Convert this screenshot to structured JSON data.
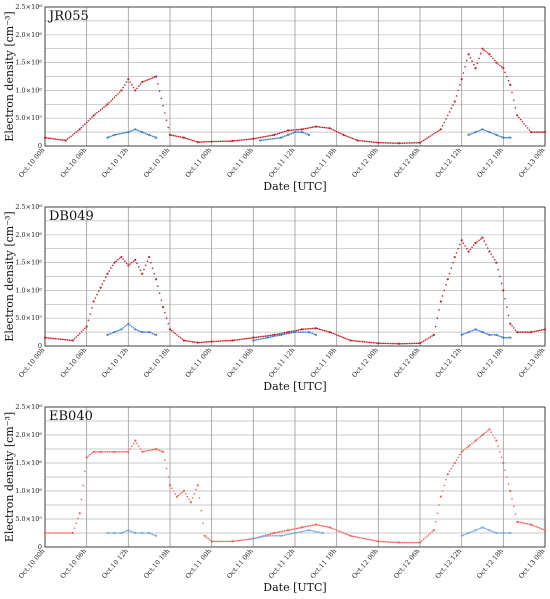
{
  "chart_data": [
    {
      "type": "scatter",
      "title": "JR055",
      "xlabel": "Date [UTC]",
      "ylabel": "Electron density [cm⁻³]",
      "ylim": [
        0,
        2500000
      ],
      "xlim": [
        0,
        72
      ],
      "x_tick_labels": [
        "Oct.10 00h",
        "Oct.10 06h",
        "Oct.10 12h",
        "Oct.10 18h",
        "Oct.11 00h",
        "Oct.11 06h",
        "Oct.11 12h",
        "Oct.11 18h",
        "Oct.12 00h",
        "Oct.12 06h",
        "Oct.12 12h",
        "Oct.12 18h",
        "Oct.13 00h"
      ],
      "y_tick_labels": [
        "0",
        "5.0×10⁵",
        "1.0×10⁶",
        "1.5×10⁶",
        "2.0×10⁶",
        "2.5×10⁶"
      ],
      "grid": true,
      "series": [
        {
          "color": "#c0202a",
          "x": [
            0,
            3,
            5,
            7,
            9,
            11,
            12,
            13,
            14,
            16,
            18,
            20,
            22,
            24,
            27,
            30,
            33,
            35,
            37,
            39,
            41,
            43,
            45,
            48,
            51,
            54,
            57,
            59,
            60,
            61,
            62,
            63,
            64,
            65,
            66,
            67,
            68,
            70,
            72
          ],
          "y": [
            150000,
            100000,
            300000,
            550000,
            750000,
            1000000,
            1200000,
            1000000,
            1150000,
            1250000,
            200000,
            150000,
            70000,
            80000,
            90000,
            130000,
            200000,
            280000,
            300000,
            350000,
            320000,
            200000,
            100000,
            60000,
            50000,
            60000,
            300000,
            800000,
            1200000,
            1650000,
            1400000,
            1750000,
            1650000,
            1500000,
            1400000,
            1100000,
            550000,
            250000,
            250000
          ]
        },
        {
          "color": "#3a7fc8",
          "x": [
            9,
            10,
            12,
            13,
            14,
            15,
            16,
            31,
            34,
            35,
            36,
            37,
            38,
            61,
            62,
            63,
            64,
            65,
            66,
            67
          ],
          "y": [
            150000,
            200000,
            250000,
            300000,
            250000,
            200000,
            150000,
            100000,
            150000,
            200000,
            250000,
            250000,
            200000,
            200000,
            250000,
            300000,
            250000,
            200000,
            150000,
            150000
          ]
        }
      ]
    },
    {
      "type": "scatter",
      "title": "DB049",
      "xlabel": "Date [UTC]",
      "ylabel": "Electron density [cm⁻³]",
      "ylim": [
        0,
        2500000
      ],
      "xlim": [
        0,
        72
      ],
      "x_tick_labels": [
        "Oct.10 00h",
        "Oct.10 06h",
        "Oct.10 12h",
        "Oct.10 18h",
        "Oct.11 00h",
        "Oct.11 06h",
        "Oct.11 12h",
        "Oct.11 18h",
        "Oct.12 00h",
        "Oct.12 06h",
        "Oct.12 12h",
        "Oct.12 18h",
        "Oct.13 00h"
      ],
      "y_tick_labels": [
        "0",
        "5.0×10⁵",
        "1.0×10⁶",
        "1.5×10⁶",
        "2.0×10⁶",
        "2.5×10⁶"
      ],
      "grid": true,
      "series": [
        {
          "color": "#c0202a",
          "x": [
            0,
            4,
            6,
            7,
            8,
            9,
            10,
            11,
            12,
            13,
            14,
            15,
            16,
            17,
            18,
            20,
            22,
            24,
            27,
            30,
            33,
            35,
            37,
            39,
            41,
            44,
            48,
            51,
            54,
            56,
            57,
            58,
            59,
            60,
            61,
            62,
            63,
            64,
            65,
            66,
            67,
            68,
            70,
            72
          ],
          "y": [
            150000,
            100000,
            350000,
            800000,
            1050000,
            1300000,
            1500000,
            1600000,
            1450000,
            1550000,
            1300000,
            1600000,
            1200000,
            700000,
            300000,
            100000,
            60000,
            80000,
            100000,
            150000,
            200000,
            250000,
            300000,
            320000,
            250000,
            100000,
            50000,
            40000,
            50000,
            200000,
            800000,
            1200000,
            1600000,
            1900000,
            1700000,
            1850000,
            1950000,
            1700000,
            1500000,
            1000000,
            400000,
            250000,
            250000,
            300000
          ]
        },
        {
          "color": "#3a7fc8",
          "x": [
            9,
            10,
            11,
            12,
            13,
            14,
            15,
            16,
            30,
            32,
            34,
            36,
            38,
            39,
            60,
            61,
            62,
            63,
            64,
            65,
            66,
            67
          ],
          "y": [
            200000,
            250000,
            300000,
            400000,
            300000,
            250000,
            250000,
            200000,
            100000,
            150000,
            200000,
            250000,
            250000,
            200000,
            200000,
            250000,
            300000,
            250000,
            200000,
            200000,
            150000,
            150000
          ]
        }
      ]
    },
    {
      "type": "scatter",
      "title": "EB040",
      "xlabel": "Date [UTC]",
      "ylabel": "Electron density [cm⁻³]",
      "ylim": [
        0,
        2500000
      ],
      "xlim": [
        0,
        72
      ],
      "x_tick_labels": [
        "Oct.10 00h",
        "Oct.10 06h",
        "Oct.10 12h",
        "Oct.10 18h",
        "Oct.11 00h",
        "Oct.11 06h",
        "Oct.11 12h",
        "Oct.11 18h",
        "Oct.12 00h",
        "Oct.12 06h",
        "Oct.12 12h",
        "Oct.12 18h",
        "Oct.13 00h"
      ],
      "y_tick_labels": [
        "0",
        "5.0×10⁵",
        "1.0×10⁶",
        "1.5×10⁶",
        "2.0×10⁶",
        "2.5×10⁶"
      ],
      "grid": true,
      "series": [
        {
          "color": "#ee6055",
          "x": [
            0,
            4,
            5,
            6,
            7,
            8,
            10,
            12,
            13,
            14,
            16,
            17,
            18,
            19,
            20,
            21,
            22,
            23,
            24,
            27,
            30,
            33,
            35,
            37,
            39,
            41,
            44,
            48,
            51,
            54,
            56,
            57,
            58,
            59,
            60,
            61,
            62,
            63,
            64,
            65,
            66,
            67,
            68,
            70,
            72
          ],
          "y": [
            250000,
            250000,
            600000,
            1600000,
            1700000,
            1700000,
            1700000,
            1700000,
            1900000,
            1700000,
            1750000,
            1700000,
            1100000,
            900000,
            1000000,
            800000,
            1100000,
            200000,
            100000,
            100000,
            150000,
            250000,
            300000,
            350000,
            400000,
            350000,
            200000,
            100000,
            80000,
            80000,
            300000,
            900000,
            1300000,
            1500000,
            1700000,
            1800000,
            1900000,
            2000000,
            2100000,
            1900000,
            1500000,
            1000000,
            450000,
            400000,
            300000
          ]
        },
        {
          "color": "#6fa6e0",
          "x": [
            9,
            10,
            11,
            12,
            13,
            14,
            15,
            16,
            30,
            32,
            34,
            36,
            38,
            40,
            60,
            61,
            62,
            63,
            64,
            65,
            66,
            67
          ],
          "y": [
            250000,
            250000,
            250000,
            300000,
            250000,
            250000,
            250000,
            200000,
            150000,
            200000,
            200000,
            250000,
            300000,
            250000,
            200000,
            250000,
            300000,
            350000,
            300000,
            250000,
            250000,
            250000
          ]
        }
      ]
    }
  ]
}
